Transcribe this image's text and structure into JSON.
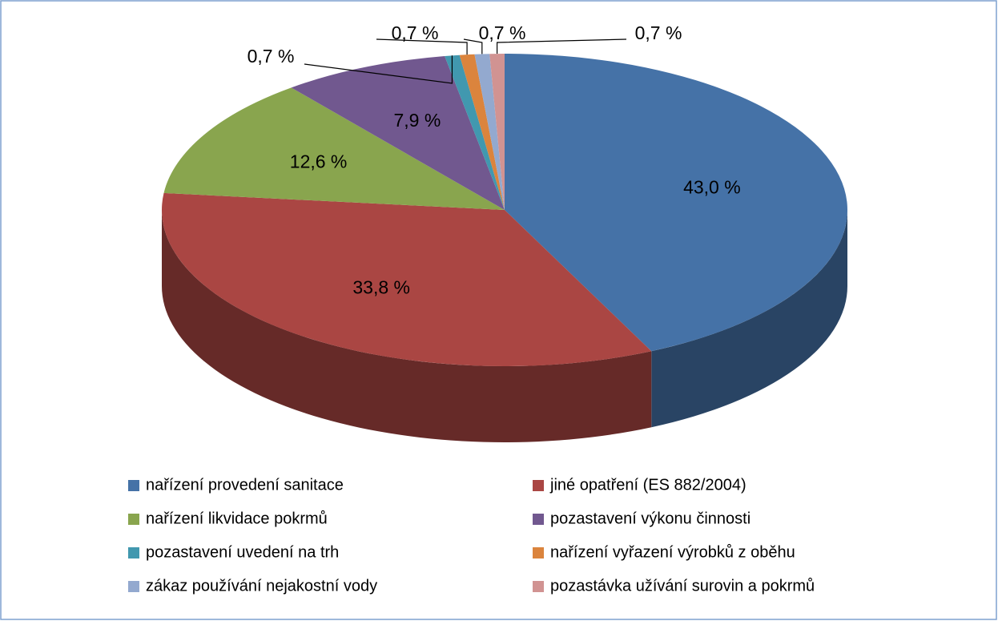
{
  "chart_data": {
    "type": "pie",
    "categories": [
      "nařízení provedení sanitace",
      "jiné opatření (ES 882/2004)",
      "nařízení likvidace pokrmů",
      "pozastavení výkonu činnosti",
      "pozastavení uvedení na trh",
      "nařízení vyřazení výrobků z oběhu",
      "zákaz používání nejakostní vody",
      "pozastávka užívání surovin a pokrmů"
    ],
    "values": [
      43.0,
      33.8,
      12.6,
      7.9,
      0.7,
      0.7,
      0.7,
      0.7
    ],
    "value_labels": [
      "43,0 %",
      "33,8 %",
      "12,6 %",
      "7,9 %",
      "0,7 %",
      "0,7 %",
      "0,7 %",
      "0,7 %"
    ],
    "colors": [
      "#4572a7",
      "#aa4643",
      "#89a54e",
      "#71588f",
      "#4198af",
      "#db843d",
      "#93a9cf",
      "#d19392"
    ],
    "legend": "bottom"
  }
}
